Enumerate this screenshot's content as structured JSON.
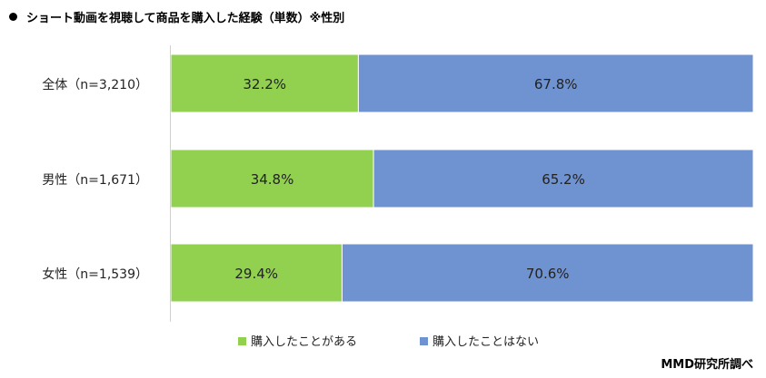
{
  "title": "ショート動画を視聴して商品を購入した経験（単数）※性別",
  "source": "MMD研究所調べ",
  "chart_data": {
    "type": "bar",
    "orientation": "horizontal",
    "stacked": "percent",
    "title": "ショート動画を視聴して商品を購入した経験（単数）※性別",
    "categories": [
      "全体（n=3,210）",
      "男性（n=1,671）",
      "女性（n=1,539）"
    ],
    "series": [
      {
        "name": "購入したことがある",
        "values": [
          32.2,
          34.8,
          29.4
        ],
        "labels": [
          "32.2%",
          "34.8%",
          "29.4%"
        ],
        "color": "#92D050"
      },
      {
        "name": "購入したことはない",
        "values": [
          67.8,
          65.2,
          70.6
        ],
        "labels": [
          "67.8%",
          "65.2%",
          "70.6%"
        ],
        "color": "#6F92D0"
      }
    ],
    "xlim": [
      0,
      100
    ],
    "grid": false,
    "legend": "bottom"
  }
}
